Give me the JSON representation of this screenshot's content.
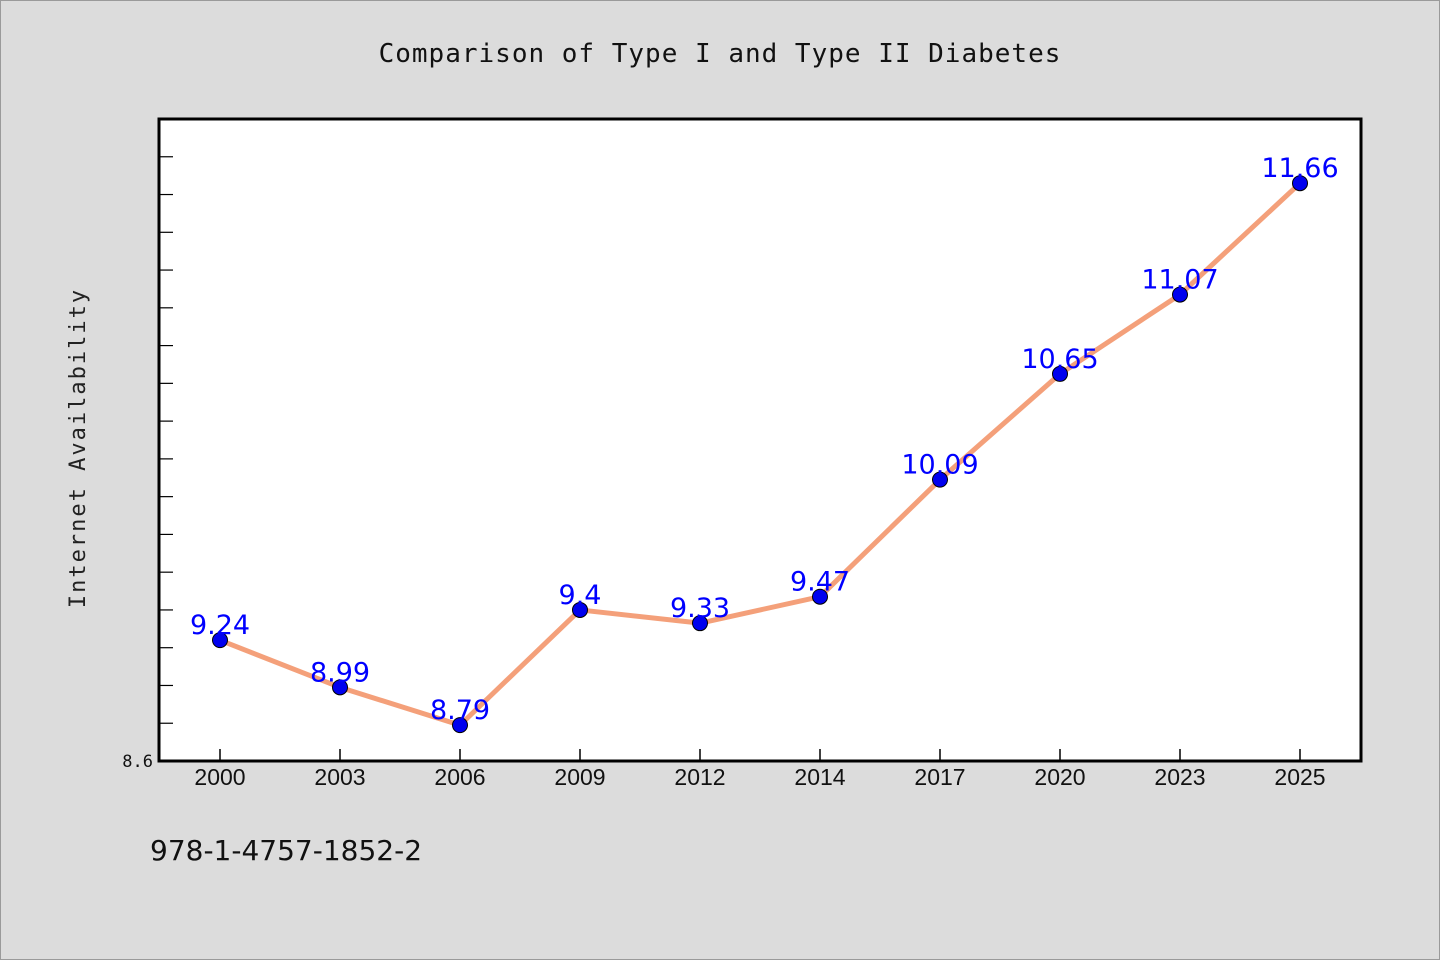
{
  "chart_data": {
    "type": "line",
    "title": "Comparison of Type I and Type II Diabetes",
    "xlabel": "",
    "ylabel": "Internet Availability",
    "categories": [
      "2000",
      "2003",
      "2006",
      "2009",
      "2012",
      "2014",
      "2017",
      "2020",
      "2023",
      "2025"
    ],
    "series": [
      {
        "values": [
          9.24,
          8.99,
          8.79,
          9.4,
          9.33,
          9.47,
          10.09,
          10.65,
          11.07,
          11.66
        ],
        "labels": [
          "9.24",
          "8.99",
          "8.79",
          "9.4",
          "9.33",
          "9.47",
          "10.09",
          "10.65",
          "11.07",
          "11.66"
        ],
        "line_color": "#f4a07a",
        "marker_color": "#0000ee"
      }
    ],
    "ylim": [
      8.6,
      12.0
    ],
    "yticks": [
      {
        "value": 8.6,
        "label": "8.6"
      }
    ],
    "grid": false,
    "legend": "none"
  },
  "footnote": "978-1-4757-1852-2",
  "colors": {
    "background": "#dcdcdc",
    "plot_background": "#ffffff",
    "line": "#f4a07a",
    "marker": "#0000ee",
    "data_label": "#0000ff"
  }
}
